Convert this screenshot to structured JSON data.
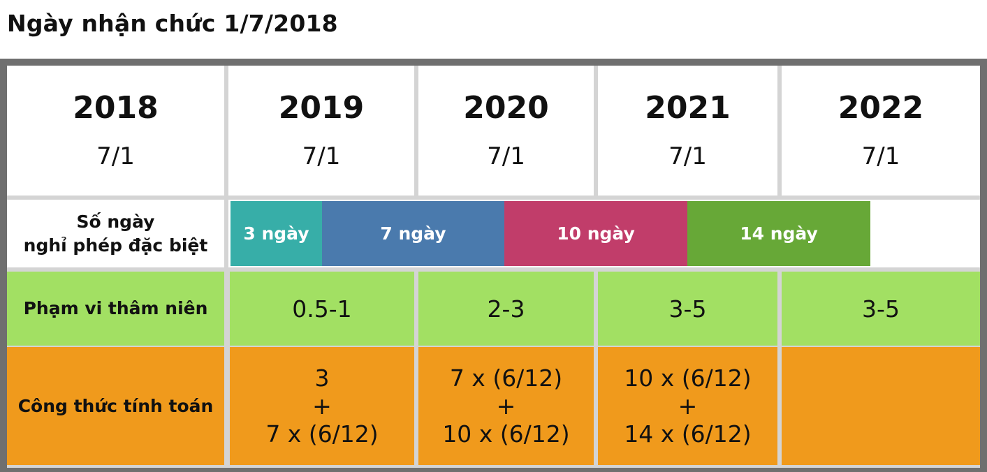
{
  "title": "Ngày nhận chức 1/7/2018",
  "years": [
    {
      "year": "2018",
      "date": "7/1"
    },
    {
      "year": "2019",
      "date": "7/1"
    },
    {
      "year": "2020",
      "date": "7/1"
    },
    {
      "year": "2021",
      "date": "7/1"
    },
    {
      "year": "2022",
      "date": "7/1"
    }
  ],
  "rows": {
    "special_leave_label": "Số ngày\nnghỉ phép đặc biệt",
    "seniority_label": "Phạm vi thâm niên",
    "formula_label": "Công thức tính toán"
  },
  "leave_segments": [
    {
      "label": "3 ngày",
      "color": "#37aea8"
    },
    {
      "label": "7 ngày",
      "color": "#4a7aad"
    },
    {
      "label": "10 ngày",
      "color": "#c13d6a"
    },
    {
      "label": "14 ngày",
      "color": "#67a837"
    }
  ],
  "seniority": [
    "0.5-1",
    "2-3",
    "3-5",
    "3-5"
  ],
  "formulas": [
    [
      "3",
      "+",
      "7 x (6/12)"
    ],
    [
      "7 x (6/12)",
      "+",
      "10 x (6/12)"
    ],
    [
      "10 x (6/12)",
      "+",
      "14 x (6/12)"
    ],
    []
  ],
  "colors": {
    "seniority_row": "#a2e063",
    "formula_row": "#f09a1c",
    "frame": "#6f6f6f",
    "gridline": "#d4d4d4"
  }
}
